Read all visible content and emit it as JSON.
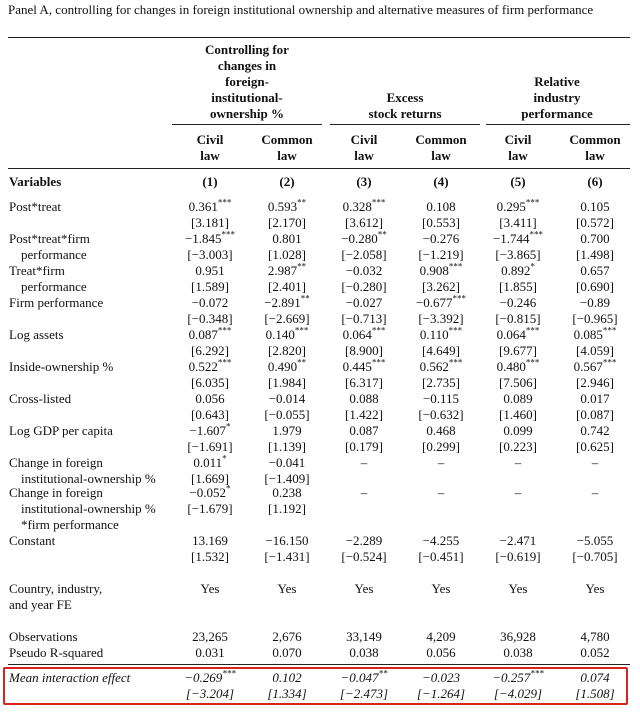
{
  "panel_title": "Panel A, controlling for changes in foreign institutional ownership and alternative measures of firm performance",
  "groups": [
    {
      "label": "Controlling for changes in foreign-institutional-ownership %"
    },
    {
      "label": "Excess stock returns"
    },
    {
      "label": "Relative industry performance"
    }
  ],
  "group_lines": {
    "g1": [
      "Controlling for",
      "changes in",
      "foreign-",
      "institutional-",
      "ownership %"
    ],
    "g2": [
      "Excess",
      "stock returns"
    ],
    "g3": [
      "Relative",
      "industry",
      "performance"
    ]
  },
  "columns": [
    {
      "top": "Civil",
      "bottom": "law"
    },
    {
      "top": "Common",
      "bottom": "law"
    },
    {
      "top": "Civil",
      "bottom": "law"
    },
    {
      "top": "Common",
      "bottom": "law"
    },
    {
      "top": "Civil",
      "bottom": "law"
    },
    {
      "top": "Common",
      "bottom": "law"
    }
  ],
  "variables_header": "Variables",
  "col_numbers": [
    "(1)",
    "(2)",
    "(3)",
    "(4)",
    "(5)",
    "(6)"
  ],
  "rows": [
    {
      "label": [
        "Post*treat"
      ],
      "coef": [
        "0.361",
        "0.593",
        "0.328",
        "0.108",
        "0.295",
        "0.105"
      ],
      "stars": [
        "***",
        "**",
        "***",
        "",
        "***",
        ""
      ],
      "t": [
        "[3.181]",
        "[2.170]",
        "[3.612]",
        "[0.553]",
        "[3.411]",
        "[0.572]"
      ]
    },
    {
      "label": [
        "Post*treat*firm",
        "performance"
      ],
      "coef": [
        "−1.845",
        "0.801",
        "−0.280",
        "−0.276",
        "−1.744",
        "0.700"
      ],
      "stars": [
        "***",
        "",
        "**",
        "",
        "***",
        ""
      ],
      "t": [
        "[−3.003]",
        "[1.028]",
        "[−2.058]",
        "[−1.219]",
        "[−3.865]",
        "[1.498]"
      ]
    },
    {
      "label": [
        "Treat*firm",
        "performance"
      ],
      "coef": [
        "0.951",
        "2.987",
        "−0.032",
        "0.908",
        "0.892",
        "0.657"
      ],
      "stars": [
        "",
        "**",
        "",
        "***",
        "*",
        ""
      ],
      "t": [
        "[1.589]",
        "[2.401]",
        "[−0.280]",
        "[3.262]",
        "[1.855]",
        "[0.690]"
      ]
    },
    {
      "label": [
        "Firm performance"
      ],
      "coef": [
        "−0.072",
        "−2.891",
        "−0.027",
        "−0.677",
        "−0.246",
        "−0.89"
      ],
      "stars": [
        "",
        "**",
        "",
        "***",
        "",
        ""
      ],
      "t": [
        "[−0.348]",
        "[−2.669]",
        "[−0.713]",
        "[−3.392]",
        "[−0.815]",
        "[−0.965]"
      ]
    },
    {
      "label": [
        "Log assets"
      ],
      "coef": [
        "0.087",
        "0.140",
        "0.064",
        "0.110",
        "0.064",
        "0.085"
      ],
      "stars": [
        "***",
        "***",
        "***",
        "***",
        "***",
        "***"
      ],
      "t": [
        "[6.292]",
        "[2.820]",
        "[8.900]",
        "[4.649]",
        "[9.677]",
        "[4.059]"
      ]
    },
    {
      "label": [
        "Inside-ownership %"
      ],
      "coef": [
        "0.522",
        "0.490",
        "0.445",
        "0.562",
        "0.480",
        "0.567"
      ],
      "stars": [
        "***",
        "**",
        "***",
        "***",
        "***",
        "***"
      ],
      "t": [
        "[6.035]",
        "[1.984]",
        "[6.317]",
        "[2.735]",
        "[7.506]",
        "[2.946]"
      ]
    },
    {
      "label": [
        "Cross-listed"
      ],
      "coef": [
        "0.056",
        "−0.014",
        "0.088",
        "−0.115",
        "0.089",
        "0.017"
      ],
      "stars": [
        "",
        "",
        "",
        "",
        "",
        ""
      ],
      "t": [
        "[0.643]",
        "[−0.055]",
        "[1.422]",
        "[−0.632]",
        "[1.460]",
        "[0.087]"
      ]
    },
    {
      "label": [
        "Log GDP per capita"
      ],
      "coef": [
        "−1.607",
        "1.979",
        "0.087",
        "0.468",
        "0.099",
        "0.742"
      ],
      "stars": [
        "*",
        "",
        "",
        "",
        "",
        ""
      ],
      "t": [
        "[−1.691]",
        "[1.139]",
        "[0.179]",
        "[0.299]",
        "[0.223]",
        "[0.625]"
      ]
    },
    {
      "label": [
        "Change in foreign",
        "institutional-ownership %"
      ],
      "coef": [
        "0.011",
        "−0.041",
        "–",
        "–",
        "–",
        "–"
      ],
      "stars": [
        "*",
        "",
        "",
        "",
        "",
        ""
      ],
      "t": [
        "[1.669]",
        "[−1.409]",
        "",
        "",
        "",
        ""
      ]
    },
    {
      "label": [
        "Change in foreign",
        "institutional-ownership %",
        "*firm performance"
      ],
      "coef": [
        "−0.052",
        "0.238",
        "–",
        "–",
        "–",
        "–"
      ],
      "stars": [
        "*",
        "",
        "",
        "",
        "",
        ""
      ],
      "t": [
        "[−1.679]",
        "[1.192]",
        "",
        "",
        "",
        ""
      ]
    },
    {
      "label": [
        "Constant"
      ],
      "coef": [
        "13.169",
        "−16.150",
        "−2.289",
        "−4.255",
        "−2.471",
        "−5.055"
      ],
      "stars": [
        "",
        "",
        "",
        "",
        "",
        ""
      ],
      "t": [
        "[1.532]",
        "[−1.431]",
        "[−0.524]",
        "[−0.451]",
        "[−0.619]",
        "[−0.705]"
      ]
    }
  ],
  "fe": {
    "label": [
      "Country, industry,",
      "and year FE"
    ],
    "values": [
      "Yes",
      "Yes",
      "Yes",
      "Yes",
      "Yes",
      "Yes"
    ]
  },
  "observations": {
    "label": "Observations",
    "values": [
      "23,265",
      "2,676",
      "33,149",
      "4,209",
      "36,928",
      "4,780"
    ]
  },
  "pseudo_r2": {
    "label": "Pseudo R-squared",
    "values": [
      "0.031",
      "0.070",
      "0.038",
      "0.056",
      "0.038",
      "0.052"
    ]
  },
  "mean_interaction": {
    "label": "Mean interaction effect",
    "coef": [
      "−0.269",
      "0.102",
      "−0.047",
      "−0.023",
      "−0.257",
      "0.074"
    ],
    "stars": [
      "***",
      "",
      "**",
      "",
      "***",
      ""
    ],
    "t": [
      "[−3.204]",
      "[1.334]",
      "[−2.473]",
      "[−1.264]",
      "[−4.029]",
      "[1.508]"
    ]
  },
  "highlight_color": "#d9231f"
}
